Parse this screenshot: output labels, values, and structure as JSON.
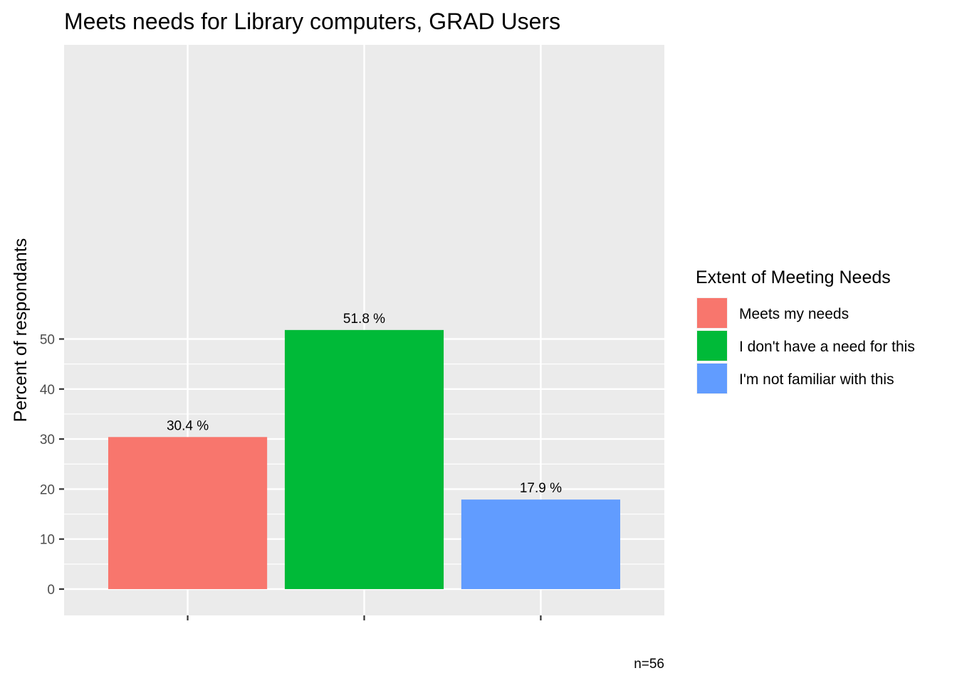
{
  "chart_data": {
    "type": "bar",
    "title": "Meets needs for Library computers, GRAD Users",
    "xlabel": "",
    "ylabel": "Percent of respondants",
    "ylim": [
      0,
      54.4
    ],
    "yticks": [
      0,
      10,
      20,
      30,
      40,
      50
    ],
    "grid": true,
    "categories": [
      "Meets my needs",
      "I don't have a need for this",
      "I'm not familiar with this"
    ],
    "values": [
      30.4,
      51.8,
      17.9
    ],
    "data_labels": [
      "30.4 %",
      "51.8 %",
      "17.9 %"
    ],
    "colors": [
      "#F8766D",
      "#00BA38",
      "#619CFF"
    ],
    "legend": {
      "title": "Extent of Meeting Needs",
      "placement": "right",
      "entries": [
        "Meets my needs",
        "I don't have a need for this",
        "I'm not familiar with this"
      ]
    },
    "caption": "n=56"
  }
}
